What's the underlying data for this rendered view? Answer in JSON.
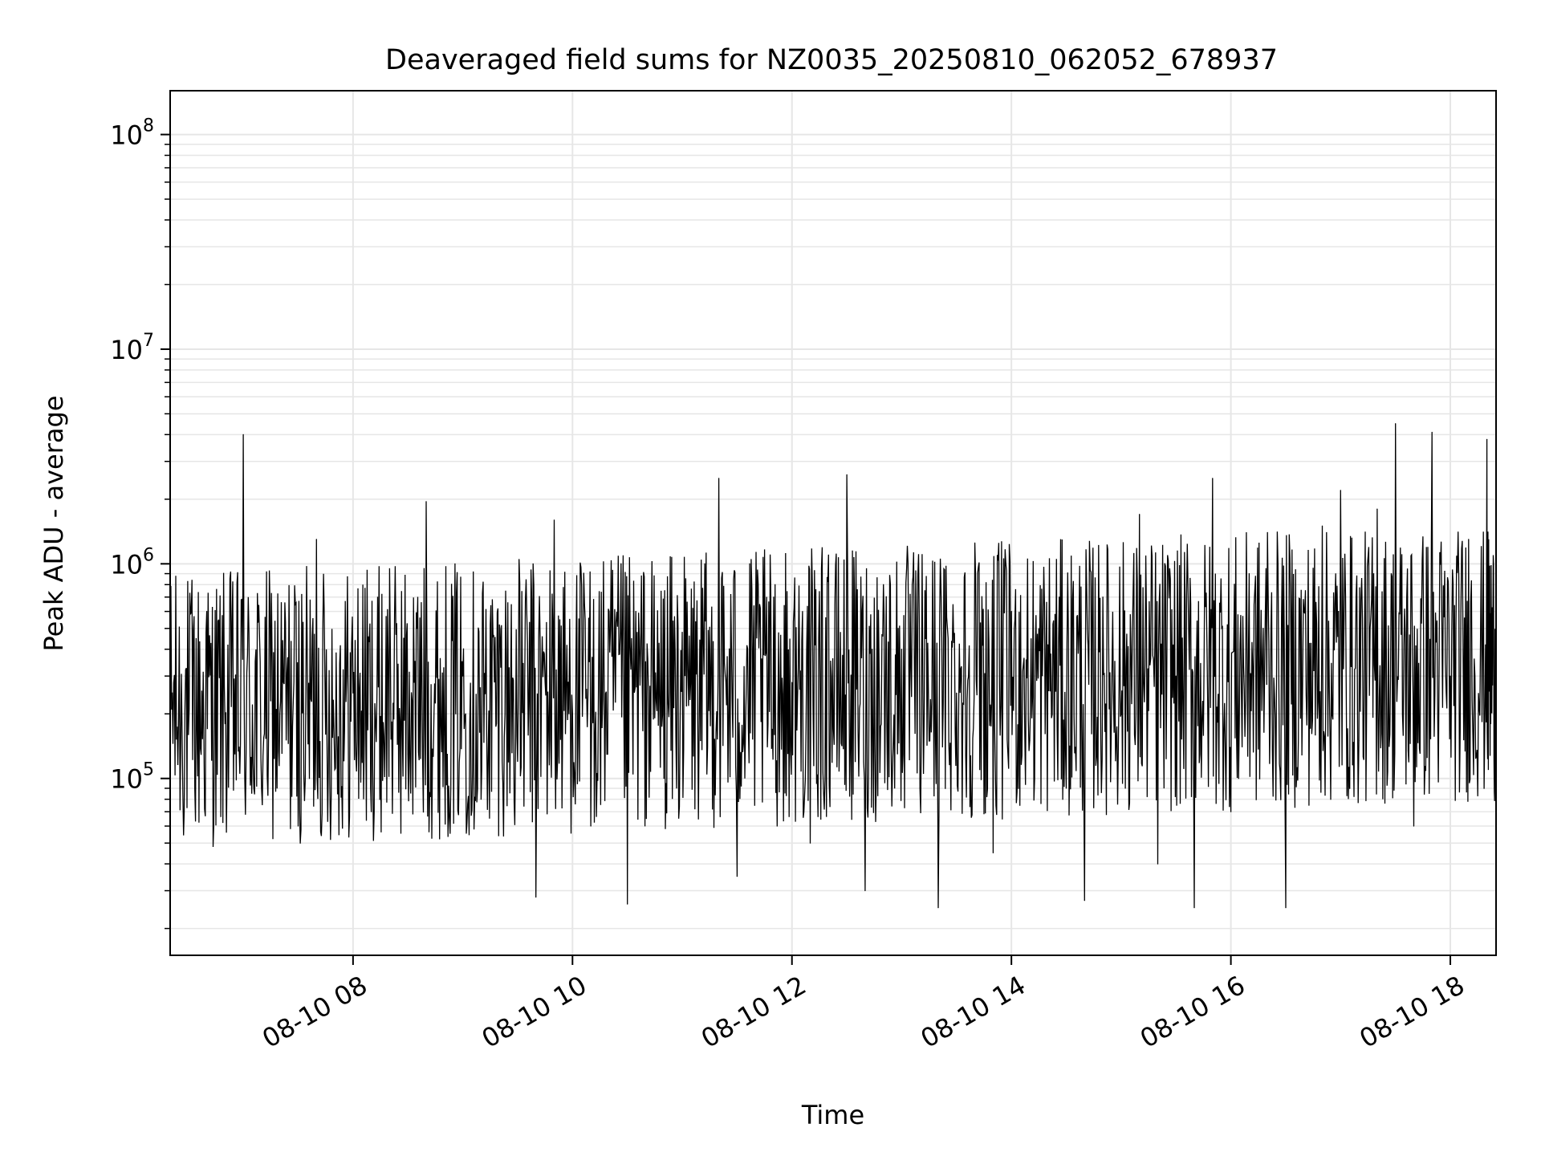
{
  "chart_data": {
    "type": "line",
    "title": "Deaveraged field sums for NZ0035_20250810_062052_678937",
    "xlabel": "Time",
    "ylabel": "Peak ADU - average",
    "yscale": "log",
    "ylim": [
      15000,
      160000000
    ],
    "xlim": [
      "2025-08-10 06:20",
      "2025-08-10 18:25"
    ],
    "xticks": [
      {
        "t": "2025-08-10 08:00",
        "label": "08-10 08"
      },
      {
        "t": "2025-08-10 10:00",
        "label": "08-10 10"
      },
      {
        "t": "2025-08-10 12:00",
        "label": "08-10 12"
      },
      {
        "t": "2025-08-10 14:00",
        "label": "08-10 14"
      },
      {
        "t": "2025-08-10 16:00",
        "label": "08-10 16"
      },
      {
        "t": "2025-08-10 18:00",
        "label": "08-10 18"
      }
    ],
    "yticks": [
      {
        "value": 100000,
        "base": "10",
        "exp": "5"
      },
      {
        "value": 1000000,
        "base": "10",
        "exp": "6"
      },
      {
        "value": 10000000,
        "base": "10",
        "exp": "7"
      },
      {
        "value": 100000000,
        "base": "10",
        "exp": "8"
      }
    ],
    "grid": true,
    "line_color": "#000000",
    "grid_color": "#e6e6e6",
    "series": [
      {
        "values": [
          [
            "2025-08-10 06:20",
            420000
          ],
          [
            "2025-08-10 06:30",
            160000
          ],
          [
            "2025-08-10 06:40",
            600000
          ],
          [
            "2025-08-10 06:50",
            180000
          ],
          [
            "2025-08-10 07:00",
            4000000
          ],
          [
            "2025-08-10 07:10",
            90000
          ],
          [
            "2025-08-10 07:20",
            200000
          ],
          [
            "2025-08-10 07:30",
            60000
          ],
          [
            "2025-08-10 07:40",
            1300000
          ],
          [
            "2025-08-10 07:50",
            110000
          ],
          [
            "2025-08-10 08:00",
            250000
          ],
          [
            "2025-08-10 08:10",
            70000
          ],
          [
            "2025-08-10 08:20",
            950000
          ],
          [
            "2025-08-10 08:30",
            130000
          ],
          [
            "2025-08-10 08:40",
            1950000
          ],
          [
            "2025-08-10 08:50",
            160000
          ],
          [
            "2025-08-10 09:00",
            300000
          ],
          [
            "2025-08-10 09:10",
            80000
          ],
          [
            "2025-08-10 09:20",
            520000
          ],
          [
            "2025-08-10 09:30",
            120000
          ],
          [
            "2025-08-10 09:40",
            28000
          ],
          [
            "2025-08-10 09:50",
            1600000
          ],
          [
            "2025-08-10 10:00",
            200000
          ],
          [
            "2025-08-10 10:10",
            60000
          ],
          [
            "2025-08-10 10:20",
            600000
          ],
          [
            "2025-08-10 10:30",
            26000
          ],
          [
            "2025-08-10 10:40",
            350000
          ],
          [
            "2025-08-10 10:50",
            100000
          ],
          [
            "2025-08-10 11:00",
            480000
          ],
          [
            "2025-08-10 11:10",
            150000
          ],
          [
            "2025-08-10 11:20",
            2500000
          ],
          [
            "2025-08-10 11:30",
            35000
          ],
          [
            "2025-08-10 11:40",
            400000
          ],
          [
            "2025-08-10 11:50",
            700000
          ],
          [
            "2025-08-10 12:00",
            280000
          ],
          [
            "2025-08-10 12:10",
            50000
          ],
          [
            "2025-08-10 12:20",
            1100000
          ],
          [
            "2025-08-10 12:30",
            2600000
          ],
          [
            "2025-08-10 12:40",
            30000
          ],
          [
            "2025-08-10 12:50",
            800000
          ],
          [
            "2025-08-10 13:00",
            400000
          ],
          [
            "2025-08-10 13:10",
            90000
          ],
          [
            "2025-08-10 13:20",
            25000
          ],
          [
            "2025-08-10 13:30",
            250000
          ],
          [
            "2025-08-10 13:40",
            1250000
          ],
          [
            "2025-08-10 13:50",
            45000
          ],
          [
            "2025-08-10 14:00",
            600000
          ],
          [
            "2025-08-10 14:10",
            150000
          ],
          [
            "2025-08-10 14:20",
            420000
          ],
          [
            "2025-08-10 14:30",
            90000
          ],
          [
            "2025-08-10 14:40",
            27000
          ],
          [
            "2025-08-10 14:50",
            700000
          ],
          [
            "2025-08-10 15:00",
            200000
          ],
          [
            "2025-08-10 15:10",
            1700000
          ],
          [
            "2025-08-10 15:20",
            40000
          ],
          [
            "2025-08-10 15:30",
            300000
          ],
          [
            "2025-08-10 15:40",
            25000
          ],
          [
            "2025-08-10 15:50",
            2500000
          ],
          [
            "2025-08-10 16:00",
            70000
          ],
          [
            "2025-08-10 16:10",
            900000
          ],
          [
            "2025-08-10 16:20",
            1400000
          ],
          [
            "2025-08-10 16:30",
            25000
          ],
          [
            "2025-08-10 16:40",
            600000
          ],
          [
            "2025-08-10 16:50",
            1500000
          ],
          [
            "2025-08-10 17:00",
            2200000
          ],
          [
            "2025-08-10 17:10",
            150000
          ],
          [
            "2025-08-10 17:20",
            1800000
          ],
          [
            "2025-08-10 17:30",
            4500000
          ],
          [
            "2025-08-10 17:40",
            60000
          ],
          [
            "2025-08-10 17:50",
            4100000
          ],
          [
            "2025-08-10 18:00",
            300000
          ],
          [
            "2025-08-10 18:10",
            1300000
          ],
          [
            "2025-08-10 18:20",
            3800000
          ],
          [
            "2025-08-10 18:25",
            400000
          ]
        ]
      }
    ]
  }
}
